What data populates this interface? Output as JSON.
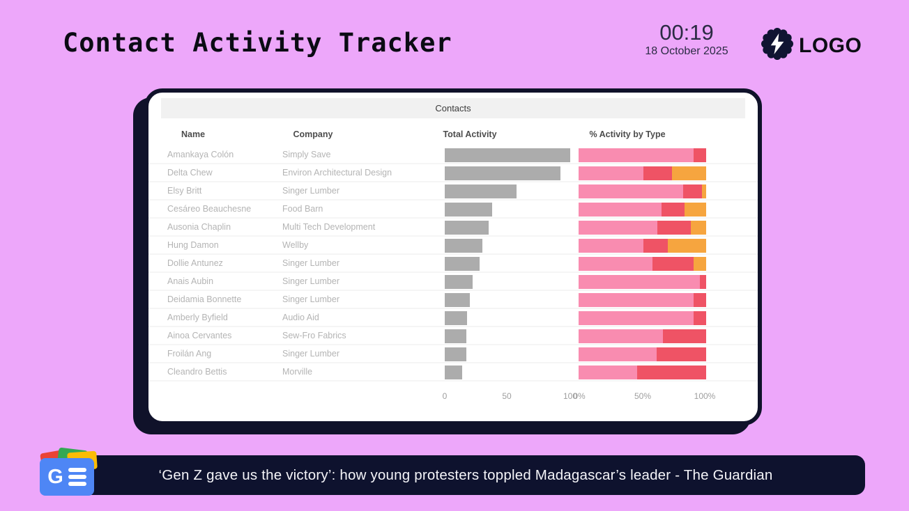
{
  "header": {
    "title": "Contact Activity Tracker",
    "clock_time": "00:19",
    "clock_date": "18 October 2025",
    "logo_text": "LOGO"
  },
  "card": {
    "panel_title": "Contacts"
  },
  "table": {
    "columns": [
      "Name",
      "Company",
      "Total Activity",
      "% Activity by Type"
    ],
    "axis_total_ticks": [
      "0",
      "50",
      "100"
    ],
    "axis_pct_ticks": [
      "0%",
      "50%",
      "100%"
    ],
    "total_axis_max": 100,
    "rows": [
      {
        "name": "Amankaya Colón",
        "company": "Simply Save",
        "total": 100,
        "pct": [
          90,
          10,
          0
        ]
      },
      {
        "name": "Delta Chew",
        "company": "Environ Architectural Design",
        "total": 92,
        "pct": [
          51,
          22,
          27
        ]
      },
      {
        "name": "Elsy Britt",
        "company": "Singer Lumber",
        "total": 57,
        "pct": [
          82,
          15,
          3
        ]
      },
      {
        "name": "Cesáreo Beauchesne",
        "company": "Food Barn",
        "total": 38,
        "pct": [
          65,
          18,
          17
        ]
      },
      {
        "name": "Ausonia Chaplin",
        "company": "Multi Tech Development",
        "total": 35,
        "pct": [
          62,
          26,
          12
        ]
      },
      {
        "name": "Hung Damon",
        "company": "Wellby",
        "total": 30,
        "pct": [
          51,
          19,
          30
        ]
      },
      {
        "name": "Dollie Antunez",
        "company": "Singer Lumber",
        "total": 28,
        "pct": [
          58,
          32,
          10
        ]
      },
      {
        "name": "Anais Aubin",
        "company": "Singer Lumber",
        "total": 22,
        "pct": [
          95,
          5,
          0
        ]
      },
      {
        "name": "Deidamia Bonnette",
        "company": "Singer Lumber",
        "total": 20,
        "pct": [
          90,
          10,
          0
        ]
      },
      {
        "name": "Amberly Byfield",
        "company": "Audio Aid",
        "total": 18,
        "pct": [
          90,
          10,
          0
        ]
      },
      {
        "name": "Ainoa Cervantes",
        "company": "Sew-Fro Fabrics",
        "total": 17,
        "pct": [
          66,
          34,
          0
        ]
      },
      {
        "name": "Froilán Ang",
        "company": "Singer Lumber",
        "total": 17,
        "pct": [
          61,
          39,
          0
        ]
      },
      {
        "name": "Cleandro Bettis",
        "company": "Morville",
        "total": 14,
        "pct": [
          46,
          54,
          0
        ]
      }
    ]
  },
  "colors": {
    "background": "#eda7fa",
    "card_border": "#10122a",
    "total_bar": "#acacac",
    "pct_segment_1": "#f98cb0",
    "pct_segment_2": "#ef5365",
    "pct_segment_3": "#f6a53f",
    "ticker_bg": "#0e122e"
  },
  "ticker": {
    "headline": "‘Gen Z gave us the victory’: how young protesters toppled Madagascar’s leader - The Guardian"
  }
}
